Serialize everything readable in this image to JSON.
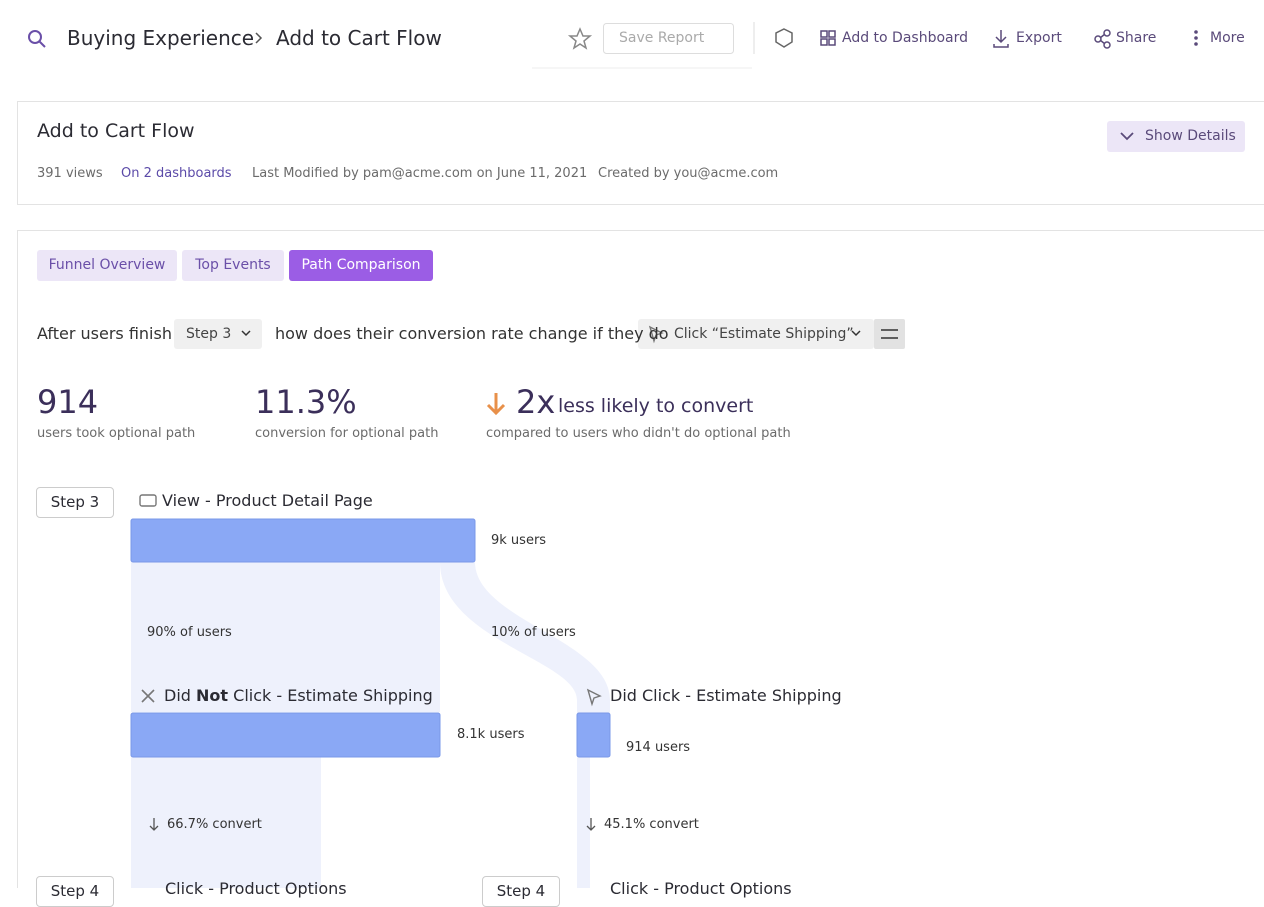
{
  "header": {
    "breadcrumb": [
      "Buying Experience",
      "Add to Cart Flow"
    ],
    "actions": {
      "save": "Save Report",
      "dashboard": "Add to Dashboard",
      "export": "Export",
      "share": "Share",
      "more": "More"
    }
  },
  "report": {
    "title": "Add to Cart Flow",
    "views": "391 views",
    "dashboards": "On 2 dashboards",
    "modified": "Last Modified by pam@acme.com on June 11, 2021",
    "created": "Created by you@acme.com",
    "details_button": "Show Details"
  },
  "tabs": [
    "Funnel Overview",
    "Top Events",
    "Path Comparison"
  ],
  "query": {
    "prefix": "After users finish",
    "step": "Step 3",
    "middle": "how does their conversion rate change if they do",
    "event": "Click “Estimate Shipping”"
  },
  "stats": [
    {
      "value": "914",
      "label": "users took optional path"
    },
    {
      "value": "11.3%",
      "label": "conversion for optional path"
    },
    {
      "value": "2x",
      "suffix": "less likely to convert",
      "label": "compared to users who didn't do optional path"
    }
  ],
  "flow": {
    "start": {
      "step": "Step 3",
      "event": "View - Product Detail Page",
      "users": "9k users"
    },
    "split": {
      "left_share": "90% of users",
      "right_share": "10% of users"
    },
    "not_clicked": {
      "pre": "Did",
      "bold": "Not",
      "post": "Click - Estimate Shipping",
      "users": "8.1k users",
      "convert": "66.7% convert"
    },
    "clicked": {
      "event": "Did Click - Estimate Shipping",
      "users": "914 users",
      "convert": "45.1% convert"
    },
    "next": [
      {
        "step": "Step 4",
        "event": "Click - Product Options"
      },
      {
        "step": "Step 4",
        "event": "Click - Product Options"
      }
    ]
  }
}
